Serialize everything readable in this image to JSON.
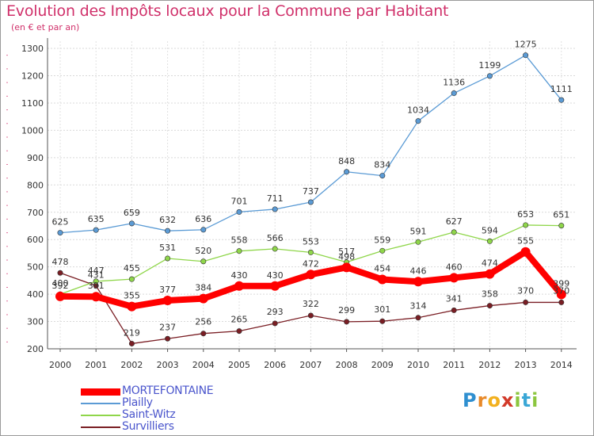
{
  "title": "Evolution des Impôts locaux pour la Commune par Habitant",
  "subtitle": "(en € et par an)",
  "logo_text": "Proxiti",
  "chart_data": {
    "type": "line",
    "title": "Evolution des Impôts locaux pour la Commune par Habitant",
    "subtitle": "(en € et par an)",
    "categories": [
      "2000",
      "2001",
      "2002",
      "2003",
      "2004",
      "2005",
      "2006",
      "2007",
      "2008",
      "2009",
      "2010",
      "2011",
      "2012",
      "2013",
      "2014"
    ],
    "yticks": [
      "200",
      "300",
      "400",
      "500",
      "600",
      "700",
      "800",
      "900",
      "1000",
      "1100",
      "1200",
      "1300"
    ],
    "ylim": [
      200,
      1300
    ],
    "grid": true,
    "legend_position": "bottom-left",
    "series": [
      {
        "name": "MORTEFONTAINE",
        "color": "#ff0000",
        "values": [
          392,
          391,
          355,
          377,
          384,
          430,
          430,
          472,
          498,
          454,
          446,
          460,
          474,
          555,
          399
        ],
        "labels": [
          "392",
          "391",
          "355",
          "377",
          "384",
          "430",
          "430",
          "472",
          "498",
          "454",
          "446",
          "460",
          "474",
          "555",
          "399"
        ]
      },
      {
        "name": "Plailly",
        "color": "#5b9bd5",
        "values": [
          625,
          635,
          659,
          632,
          636,
          701,
          711,
          737,
          848,
          834,
          1034,
          1136,
          1199,
          1275,
          1111
        ],
        "labels": [
          "625",
          "635",
          "659",
          "632",
          "636",
          "701",
          "711",
          "737",
          "848",
          "834",
          "1034",
          "1136",
          "1199",
          "1275",
          "1111"
        ]
      },
      {
        "name": "Saint-Witz",
        "color": "#8fd64a",
        "values": [
          400,
          447,
          455,
          531,
          520,
          558,
          566,
          553,
          517,
          559,
          591,
          627,
          594,
          653,
          651
        ],
        "labels": [
          "400",
          "447",
          "455",
          "531",
          "520",
          "558",
          "566",
          "553",
          "517",
          "559",
          "591",
          "627",
          "594",
          "653",
          "651"
        ]
      },
      {
        "name": "Survilliers",
        "color": "#7a1e24",
        "values": [
          478,
          431,
          219,
          237,
          256,
          265,
          293,
          322,
          299,
          301,
          314,
          341,
          358,
          370,
          370
        ],
        "labels": [
          "478",
          "431",
          "219",
          "237",
          "256",
          "265",
          "293",
          "322",
          "299",
          "301",
          "314",
          "341",
          "358",
          "370",
          "370"
        ]
      }
    ]
  }
}
